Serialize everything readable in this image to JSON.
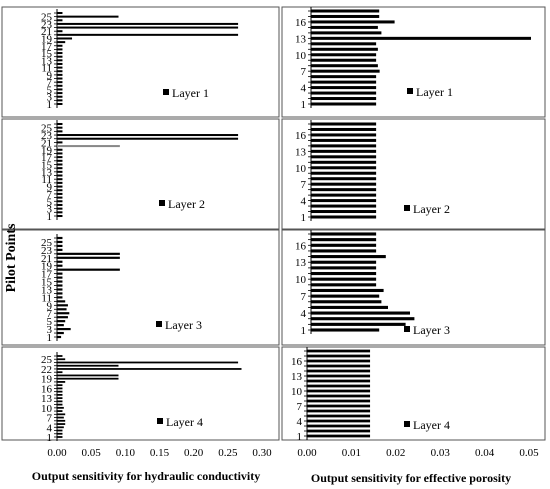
{
  "figure": {
    "y_axis_title": "Pilot Points",
    "left_x_title": "Output sensitivity for hydraulic conductivity",
    "right_x_title": "Output sensitivity for effective porosity",
    "left_x_ticks": [
      "0.00",
      "0.05",
      "0.10",
      "0.15",
      "0.20",
      "0.25",
      "0.30"
    ],
    "right_x_ticks": [
      "0.00",
      "0.01",
      "0.02",
      "0.03",
      "0.04",
      "0.05"
    ]
  },
  "chart_data": [
    {
      "type": "bar",
      "orientation": "horizontal",
      "panel": "hk-layer-1",
      "legend": "Layer 1",
      "xlim": [
        0,
        0.3
      ],
      "categories": [
        1,
        2,
        3,
        4,
        5,
        6,
        7,
        8,
        9,
        10,
        11,
        12,
        13,
        14,
        15,
        16,
        17,
        18,
        19,
        20,
        21,
        22,
        23,
        24,
        25,
        26
      ],
      "tick_labels": [
        "1",
        "3",
        "5",
        "7",
        "9",
        "11",
        "13",
        "15",
        "17",
        "19",
        "21",
        "23",
        "25"
      ],
      "values": [
        0.008,
        0.008,
        0.008,
        0.008,
        0.008,
        0.008,
        0.008,
        0.008,
        0.008,
        0.008,
        0.008,
        0.008,
        0.008,
        0.008,
        0.008,
        0.008,
        0.008,
        0.012,
        0.022,
        0.265,
        0.008,
        0.265,
        0.265,
        0.008,
        0.09,
        0.008
      ]
    },
    {
      "type": "bar",
      "orientation": "horizontal",
      "panel": "hk-layer-2",
      "legend": "Layer 2",
      "xlim": [
        0,
        0.3
      ],
      "categories": [
        1,
        2,
        3,
        4,
        5,
        6,
        7,
        8,
        9,
        10,
        11,
        12,
        13,
        14,
        15,
        16,
        17,
        18,
        19,
        20,
        21,
        22,
        23,
        24,
        25,
        26
      ],
      "tick_labels": [
        "1",
        "3",
        "5",
        "7",
        "9",
        "11",
        "13",
        "15",
        "17",
        "19",
        "21",
        "23",
        "25"
      ],
      "values": [
        0.008,
        0.008,
        0.008,
        0.008,
        0.008,
        0.008,
        0.008,
        0.008,
        0.008,
        0.008,
        0.008,
        0.008,
        0.008,
        0.008,
        0.008,
        0.008,
        0.008,
        0.008,
        0.008,
        0.092,
        0.008,
        0.265,
        0.265,
        0.008,
        0.008,
        0.008
      ]
    },
    {
      "type": "bar",
      "orientation": "horizontal",
      "panel": "hk-layer-3",
      "legend": "Layer 3",
      "xlim": [
        0,
        0.3
      ],
      "categories": [
        1,
        2,
        3,
        4,
        5,
        6,
        7,
        8,
        9,
        10,
        11,
        12,
        13,
        14,
        15,
        16,
        17,
        18,
        19,
        20,
        21,
        22,
        23,
        24,
        25,
        26
      ],
      "tick_labels": [
        "1",
        "3",
        "5",
        "7",
        "9",
        "11",
        "13",
        "15",
        "17",
        "19",
        "21",
        "23",
        "25"
      ],
      "values": [
        0.006,
        0.01,
        0.02,
        0.01,
        0.012,
        0.016,
        0.018,
        0.014,
        0.016,
        0.012,
        0.008,
        0.008,
        0.008,
        0.008,
        0.008,
        0.008,
        0.008,
        0.092,
        0.008,
        0.008,
        0.092,
        0.092,
        0.008,
        0.008,
        0.008,
        0.008
      ]
    },
    {
      "type": "bar",
      "orientation": "horizontal",
      "panel": "hk-layer-4",
      "legend": "Layer 4",
      "xlim": [
        0,
        0.3
      ],
      "categories": [
        1,
        2,
        3,
        4,
        5,
        6,
        7,
        8,
        9,
        10,
        11,
        12,
        13,
        14,
        15,
        16,
        17,
        18,
        19,
        20,
        21,
        22,
        23,
        24,
        25,
        26
      ],
      "tick_labels": [
        "1",
        "4",
        "7",
        "10",
        "13",
        "16",
        "19",
        "22",
        "25"
      ],
      "values": [
        0.008,
        0.008,
        0.008,
        0.01,
        0.012,
        0.012,
        0.01,
        0.012,
        0.008,
        0.01,
        0.008,
        0.008,
        0.008,
        0.008,
        0.008,
        0.008,
        0.008,
        0.012,
        0.09,
        0.09,
        0.008,
        0.27,
        0.09,
        0.265,
        0.012,
        0.008
      ]
    },
    {
      "type": "bar",
      "orientation": "horizontal",
      "panel": "ep-layer-1",
      "legend": "Layer 1",
      "xlim": [
        0,
        0.05
      ],
      "categories": [
        1,
        2,
        3,
        4,
        5,
        6,
        7,
        8,
        9,
        10,
        11,
        12,
        13,
        14,
        15,
        16,
        17,
        18
      ],
      "tick_labels": [
        "1",
        "4",
        "7",
        "10",
        "13",
        "16"
      ],
      "values": [
        0.0148,
        0.0148,
        0.0148,
        0.0148,
        0.0148,
        0.0148,
        0.0156,
        0.0152,
        0.0148,
        0.0148,
        0.0152,
        0.0148,
        0.05,
        0.016,
        0.0152,
        0.019,
        0.0155,
        0.0155
      ]
    },
    {
      "type": "bar",
      "orientation": "horizontal",
      "panel": "ep-layer-2",
      "legend": "Layer 2",
      "xlim": [
        0,
        0.05
      ],
      "categories": [
        1,
        2,
        3,
        4,
        5,
        6,
        7,
        8,
        9,
        10,
        11,
        12,
        13,
        14,
        15,
        16,
        17,
        18
      ],
      "tick_labels": [
        "1",
        "4",
        "7",
        "10",
        "13",
        "16"
      ],
      "values": [
        0.0148,
        0.0148,
        0.0148,
        0.0148,
        0.0148,
        0.0148,
        0.0148,
        0.0148,
        0.0148,
        0.0148,
        0.0148,
        0.0148,
        0.0148,
        0.0148,
        0.0148,
        0.0148,
        0.0148,
        0.0148
      ]
    },
    {
      "type": "bar",
      "orientation": "horizontal",
      "panel": "ep-layer-3",
      "legend": "Layer 3",
      "xlim": [
        0,
        0.05
      ],
      "categories": [
        1,
        2,
        3,
        4,
        5,
        6,
        7,
        8,
        9,
        10,
        11,
        12,
        13,
        14,
        15,
        16,
        17,
        18
      ],
      "tick_labels": [
        "1",
        "4",
        "7",
        "10",
        "13",
        "16"
      ],
      "values": [
        0.0155,
        0.0215,
        0.0235,
        0.0225,
        0.0175,
        0.016,
        0.0155,
        0.0165,
        0.0148,
        0.0148,
        0.0148,
        0.0148,
        0.0148,
        0.017,
        0.0148,
        0.0148,
        0.0148,
        0.0148
      ]
    },
    {
      "type": "bar",
      "orientation": "horizontal",
      "panel": "ep-layer-4",
      "legend": "Layer 4",
      "xlim": [
        0,
        0.05
      ],
      "categories": [
        1,
        2,
        3,
        4,
        5,
        6,
        7,
        8,
        9,
        10,
        11,
        12,
        13,
        14,
        15,
        16,
        17,
        18
      ],
      "tick_labels": [
        "1",
        "4",
        "7",
        "10",
        "13",
        "16"
      ],
      "values": [
        0.0142,
        0.0142,
        0.0142,
        0.0142,
        0.0142,
        0.0142,
        0.0142,
        0.0142,
        0.0142,
        0.0142,
        0.0142,
        0.0142,
        0.0142,
        0.0142,
        0.0142,
        0.0142,
        0.0142,
        0.0142
      ]
    }
  ]
}
